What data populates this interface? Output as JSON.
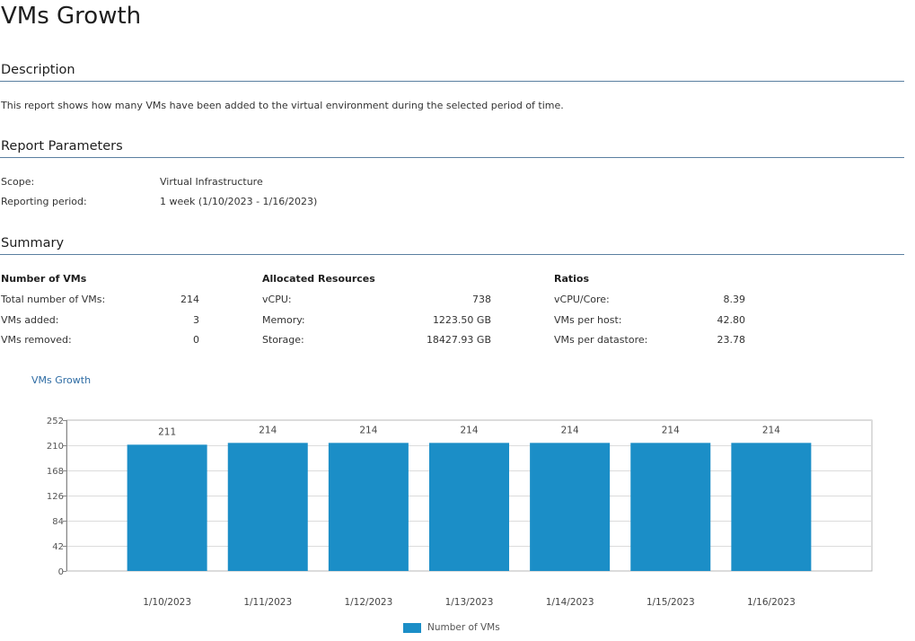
{
  "title": "VMs Growth",
  "description": {
    "heading": "Description",
    "text": "This report shows how many VMs have been added to the virtual environment during the selected period of time."
  },
  "parameters": {
    "heading": "Report Parameters",
    "scope_label": "Scope:",
    "scope_value": "Virtual Infrastructure",
    "period_label": "Reporting period:",
    "period_value": "1 week (1/10/2023 - 1/16/2023)"
  },
  "summary": {
    "heading": "Summary",
    "vms": {
      "heading": "Number of VMs",
      "rows": [
        {
          "label": "Total number of VMs:",
          "value": "214"
        },
        {
          "label": "VMs added:",
          "value": "3"
        },
        {
          "label": "VMs removed:",
          "value": "0"
        }
      ]
    },
    "resources": {
      "heading": "Allocated Resources",
      "rows": [
        {
          "label": "vCPU:",
          "value": "738"
        },
        {
          "label": "Memory:",
          "value": "1223.50 GB"
        },
        {
          "label": "Storage:",
          "value": "18427.93 GB"
        }
      ]
    },
    "ratios": {
      "heading": "Ratios",
      "rows": [
        {
          "label": "vCPU/Core:",
          "value": "8.39"
        },
        {
          "label": "VMs per host:",
          "value": "42.80"
        },
        {
          "label": "VMs per datastore:",
          "value": "23.78"
        }
      ]
    }
  },
  "chart_data": {
    "type": "bar",
    "title": "VMs Growth",
    "categories": [
      "1/10/2023",
      "1/11/2023",
      "1/12/2023",
      "1/13/2023",
      "1/14/2023",
      "1/15/2023",
      "1/16/2023"
    ],
    "series": [
      {
        "name": "Number of VMs",
        "values": [
          211,
          214,
          214,
          214,
          214,
          214,
          214
        ],
        "color": "#1b8ec7"
      }
    ],
    "ylim": [
      0,
      252
    ],
    "yticks": [
      0,
      42,
      84,
      126,
      168,
      210,
      252
    ],
    "grid": true,
    "legend": "bottom-center"
  }
}
